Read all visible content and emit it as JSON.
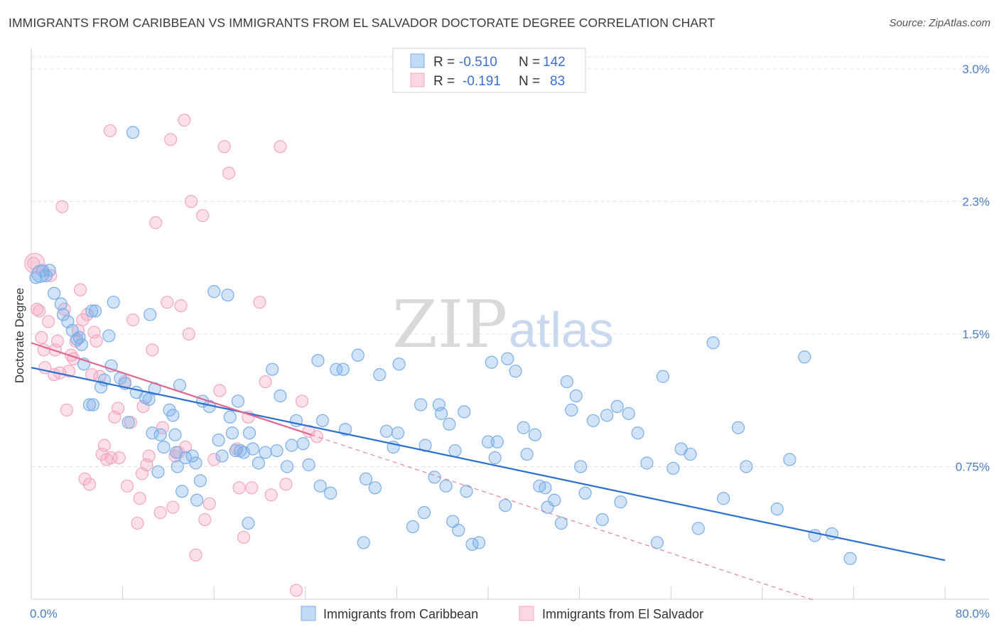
{
  "title": "IMMIGRANTS FROM CARIBBEAN VS IMMIGRANTS FROM EL SALVADOR DOCTORATE DEGREE CORRELATION CHART",
  "source": "Source: ZipAtlas.com",
  "watermark": {
    "zip": "ZIP",
    "atlas": "atlas"
  },
  "legend": {
    "rows": [
      {
        "r_label": "R =",
        "r_value": "-0.510",
        "n_label": "N =",
        "n_value": "142",
        "color": "#7baee8"
      },
      {
        "r_label": "R =",
        "r_value": "-0.191",
        "n_label": "N =",
        "n_value": "83",
        "color": "#f4a6c0"
      }
    ]
  },
  "bottom_legend": [
    {
      "label": "Immigrants from Caribbean",
      "color": "#7baee8"
    },
    {
      "label": "Immigrants from El Salvador",
      "color": "#f4a6c0"
    }
  ],
  "chart_data": {
    "type": "scatter",
    "title": "IMMIGRANTS FROM CARIBBEAN VS IMMIGRANTS FROM EL SALVADOR DOCTORATE DEGREE CORRELATION CHART",
    "xlabel": "",
    "ylabel": "Doctorate Degree",
    "xlim": [
      0,
      80
    ],
    "ylim": [
      0,
      3.1
    ],
    "x_tick_labels": [
      "0.0%",
      "80.0%"
    ],
    "y_ticks": [
      0.75,
      1.5,
      2.25,
      3.0
    ],
    "y_tick_labels": [
      "0.75%",
      "1.5%",
      "2.3%",
      "3.0%"
    ],
    "grid": true,
    "legend_position": "top-center",
    "series": [
      {
        "name": "Immigrants from Caribbean",
        "color": "#7baee8",
        "line_color": "#2a6fd0",
        "trend": {
          "x": [
            0,
            80
          ],
          "y": [
            1.31,
            0.22
          ]
        },
        "points": [
          [
            0.4,
            1.82
          ],
          [
            1.0,
            1.86
          ],
          [
            1.3,
            1.83
          ],
          [
            1.6,
            1.86
          ],
          [
            2.0,
            1.73
          ],
          [
            2.6,
            1.67
          ],
          [
            2.8,
            1.61
          ],
          [
            3.2,
            1.57
          ],
          [
            3.6,
            1.52
          ],
          [
            4.0,
            1.47
          ],
          [
            4.2,
            1.48
          ],
          [
            4.4,
            1.44
          ],
          [
            4.6,
            1.33
          ],
          [
            5.1,
            1.1
          ],
          [
            5.3,
            1.63
          ],
          [
            5.4,
            1.1
          ],
          [
            5.6,
            1.63
          ],
          [
            6.1,
            1.2
          ],
          [
            6.4,
            1.24
          ],
          [
            6.8,
            1.49
          ],
          [
            7.0,
            1.32
          ],
          [
            7.2,
            1.68
          ],
          [
            7.8,
            1.25
          ],
          [
            8.2,
            1.22
          ],
          [
            8.5,
            1.0
          ],
          [
            8.9,
            2.64
          ],
          [
            9.2,
            1.17
          ],
          [
            10.0,
            1.14
          ],
          [
            10.3,
            1.13
          ],
          [
            10.4,
            1.61
          ],
          [
            10.6,
            0.94
          ],
          [
            10.8,
            1.19
          ],
          [
            11.1,
            0.72
          ],
          [
            11.3,
            0.93
          ],
          [
            11.6,
            0.86
          ],
          [
            12.1,
            1.07
          ],
          [
            12.4,
            1.04
          ],
          [
            12.6,
            0.93
          ],
          [
            12.7,
            0.83
          ],
          [
            12.8,
            0.75
          ],
          [
            13.0,
            1.21
          ],
          [
            13.2,
            0.61
          ],
          [
            13.5,
            0.8
          ],
          [
            14.1,
            0.81
          ],
          [
            14.4,
            0.77
          ],
          [
            14.5,
            0.56
          ],
          [
            14.8,
            0.67
          ],
          [
            15.0,
            1.12
          ],
          [
            15.6,
            1.09
          ],
          [
            16.0,
            1.74
          ],
          [
            16.4,
            0.9
          ],
          [
            16.7,
            0.81
          ],
          [
            17.2,
            1.72
          ],
          [
            17.4,
            1.03
          ],
          [
            17.6,
            0.94
          ],
          [
            17.9,
            0.84
          ],
          [
            18.1,
            1.12
          ],
          [
            18.3,
            0.84
          ],
          [
            18.6,
            0.83
          ],
          [
            19.0,
            0.43
          ],
          [
            19.1,
            0.94
          ],
          [
            19.4,
            0.85
          ],
          [
            19.9,
            0.77
          ],
          [
            20.5,
            0.83
          ],
          [
            21.1,
            1.3
          ],
          [
            21.5,
            0.84
          ],
          [
            21.8,
            1.15
          ],
          [
            22.4,
            0.75
          ],
          [
            22.8,
            0.87
          ],
          [
            23.2,
            1.01
          ],
          [
            23.8,
            0.88
          ],
          [
            24.3,
            0.76
          ],
          [
            25.1,
            1.35
          ],
          [
            25.3,
            0.64
          ],
          [
            25.5,
            1.01
          ],
          [
            26.2,
            0.6
          ],
          [
            26.7,
            1.3
          ],
          [
            27.3,
            1.3
          ],
          [
            27.5,
            0.96
          ],
          [
            28.6,
            1.38
          ],
          [
            29.1,
            0.32
          ],
          [
            29.3,
            0.68
          ],
          [
            30.1,
            0.63
          ],
          [
            30.5,
            1.27
          ],
          [
            31.1,
            0.95
          ],
          [
            31.7,
            0.86
          ],
          [
            32.1,
            0.94
          ],
          [
            32.2,
            1.33
          ],
          [
            33.4,
            0.41
          ],
          [
            34.1,
            1.1
          ],
          [
            34.4,
            0.49
          ],
          [
            34.5,
            0.87
          ],
          [
            35.3,
            0.69
          ],
          [
            35.7,
            1.1
          ],
          [
            35.9,
            1.05
          ],
          [
            36.3,
            0.64
          ],
          [
            36.6,
            0.99
          ],
          [
            36.9,
            0.44
          ],
          [
            37.1,
            0.84
          ],
          [
            37.4,
            0.39
          ],
          [
            37.9,
            1.06
          ],
          [
            38.1,
            0.61
          ],
          [
            38.6,
            0.31
          ],
          [
            39.2,
            0.32
          ],
          [
            40.0,
            0.89
          ],
          [
            40.3,
            1.34
          ],
          [
            40.6,
            0.8
          ],
          [
            40.8,
            0.89
          ],
          [
            41.5,
            0.53
          ],
          [
            41.7,
            1.36
          ],
          [
            42.4,
            1.29
          ],
          [
            43.1,
            0.97
          ],
          [
            43.4,
            0.82
          ],
          [
            44.1,
            0.93
          ],
          [
            44.5,
            0.64
          ],
          [
            45.0,
            0.63
          ],
          [
            45.2,
            0.52
          ],
          [
            45.8,
            0.56
          ],
          [
            46.4,
            0.43
          ],
          [
            46.9,
            1.23
          ],
          [
            47.3,
            1.07
          ],
          [
            47.7,
            1.15
          ],
          [
            48.1,
            0.75
          ],
          [
            48.5,
            0.6
          ],
          [
            49.2,
            1.01
          ],
          [
            50.0,
            0.45
          ],
          [
            50.4,
            1.04
          ],
          [
            51.3,
            1.09
          ],
          [
            51.6,
            0.55
          ],
          [
            52.3,
            1.05
          ],
          [
            53.1,
            0.94
          ],
          [
            53.9,
            0.77
          ],
          [
            54.8,
            0.32
          ],
          [
            55.3,
            1.26
          ],
          [
            56.2,
            0.74
          ],
          [
            56.9,
            0.85
          ],
          [
            57.7,
            0.82
          ],
          [
            58.4,
            0.4
          ],
          [
            59.7,
            1.45
          ],
          [
            60.6,
            0.57
          ],
          [
            61.9,
            0.97
          ],
          [
            62.6,
            0.75
          ],
          [
            65.3,
            0.51
          ],
          [
            66.4,
            0.79
          ],
          [
            67.7,
            1.37
          ],
          [
            68.6,
            0.36
          ],
          [
            70.1,
            0.37
          ],
          [
            71.7,
            0.23
          ]
        ]
      },
      {
        "name": "Immigrants from El Salvador",
        "color": "#f4a6c0",
        "line_color": "#e06590",
        "trend": {
          "x": [
            0,
            24.5
          ],
          "y": [
            1.45,
            0.93
          ]
        },
        "trend_extension": {
          "x": [
            24.5,
            80
          ],
          "y": [
            0.93,
            -0.25
          ]
        },
        "points": [
          [
            0.2,
            1.9
          ],
          [
            0.5,
            1.64
          ],
          [
            0.7,
            1.63
          ],
          [
            0.9,
            1.48
          ],
          [
            1.1,
            1.41
          ],
          [
            1.2,
            1.31
          ],
          [
            1.5,
            1.57
          ],
          [
            1.7,
            1.83
          ],
          [
            2.0,
            1.27
          ],
          [
            2.1,
            1.41
          ],
          [
            2.3,
            1.46
          ],
          [
            2.5,
            1.28
          ],
          [
            2.7,
            2.22
          ],
          [
            2.9,
            1.64
          ],
          [
            3.1,
            1.07
          ],
          [
            3.3,
            1.29
          ],
          [
            3.5,
            1.38
          ],
          [
            3.7,
            1.36
          ],
          [
            3.9,
            1.46
          ],
          [
            4.1,
            1.52
          ],
          [
            4.3,
            1.75
          ],
          [
            4.5,
            1.58
          ],
          [
            4.7,
            0.68
          ],
          [
            4.9,
            1.61
          ],
          [
            5.1,
            0.65
          ],
          [
            5.3,
            1.27
          ],
          [
            5.5,
            1.51
          ],
          [
            5.7,
            1.46
          ],
          [
            6.0,
            1.26
          ],
          [
            6.2,
            0.82
          ],
          [
            6.4,
            0.87
          ],
          [
            6.6,
            0.79
          ],
          [
            6.9,
            2.65
          ],
          [
            7.0,
            0.8
          ],
          [
            7.3,
            1.03
          ],
          [
            7.6,
            1.08
          ],
          [
            7.7,
            0.8
          ],
          [
            8.2,
            1.23
          ],
          [
            8.4,
            0.64
          ],
          [
            8.7,
            1.0
          ],
          [
            8.9,
            1.58
          ],
          [
            9.3,
            0.43
          ],
          [
            9.5,
            0.57
          ],
          [
            9.7,
            0.71
          ],
          [
            9.8,
            1.09
          ],
          [
            10.1,
            0.76
          ],
          [
            10.3,
            0.81
          ],
          [
            10.6,
            1.41
          ],
          [
            10.9,
            2.13
          ],
          [
            11.3,
            0.49
          ],
          [
            11.5,
            0.97
          ],
          [
            11.9,
            1.68
          ],
          [
            12.2,
            2.6
          ],
          [
            12.4,
            0.52
          ],
          [
            12.6,
            0.81
          ],
          [
            12.9,
            0.83
          ],
          [
            13.1,
            1.66
          ],
          [
            13.4,
            2.71
          ],
          [
            13.5,
            0.86
          ],
          [
            13.8,
            1.5
          ],
          [
            14.0,
            2.25
          ],
          [
            14.4,
            0.25
          ],
          [
            15.0,
            2.17
          ],
          [
            15.2,
            0.45
          ],
          [
            15.6,
            0.54
          ],
          [
            16.0,
            0.79
          ],
          [
            16.5,
            1.18
          ],
          [
            16.9,
            2.56
          ],
          [
            17.3,
            2.41
          ],
          [
            18.0,
            0.85
          ],
          [
            18.2,
            0.63
          ],
          [
            18.6,
            0.35
          ],
          [
            19.0,
            1.03
          ],
          [
            19.3,
            0.63
          ],
          [
            20.0,
            1.68
          ],
          [
            20.5,
            1.23
          ],
          [
            21.0,
            0.59
          ],
          [
            21.8,
            2.56
          ],
          [
            22.3,
            0.65
          ],
          [
            23.2,
            0.05
          ],
          [
            23.7,
            1.12
          ],
          [
            24.3,
            0.95
          ],
          [
            25.0,
            0.92
          ]
        ]
      }
    ]
  }
}
